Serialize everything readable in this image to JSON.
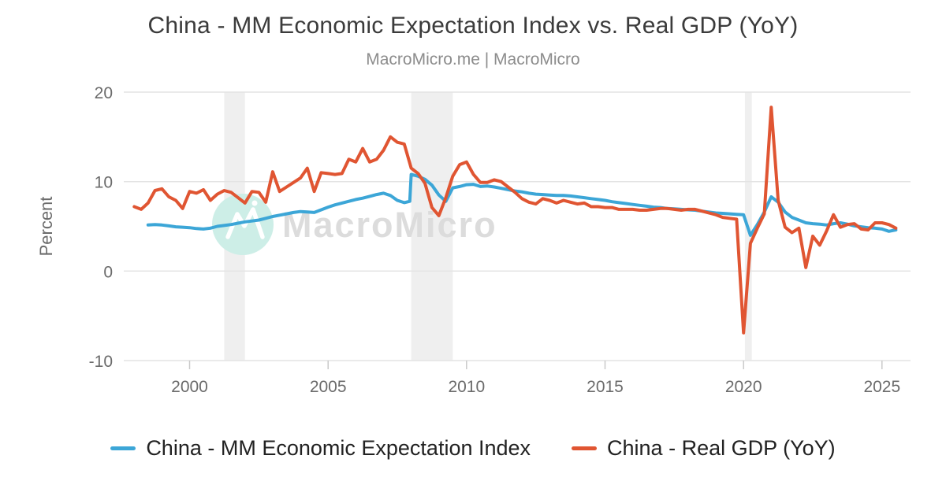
{
  "header": {
    "title": "China - MM Economic Expectation Index vs. Real GDP (YoY)",
    "subtitle": "MacroMicro.me | MacroMicro"
  },
  "colors": {
    "band": "#efefef",
    "grid": "#e4e4e4",
    "axis_tick": "#c9c9c9",
    "tick_text": "#6b6b6b",
    "title_text": "#3b3b3b",
    "subtitle_text": "#8c8c8c",
    "blue_series": "#3ca6d7",
    "red_series": "#e05532"
  },
  "chart_data": {
    "type": "line",
    "title": "China - MM Economic Expectation Index vs. Real GDP (YoY)",
    "subtitle": "MacroMicro.me | MacroMicro",
    "xlabel": "",
    "ylabel": "Percent",
    "ylim": [
      -10,
      20
    ],
    "yticks": [
      20,
      10,
      0,
      -10
    ],
    "xlim": [
      1997.85,
      2026.03
    ],
    "xticks": [
      2000,
      2005,
      2010,
      2015,
      2020,
      2025
    ],
    "grid": true,
    "legend_position": "bottom",
    "recession_bands": [
      [
        2001.25,
        2002.0
      ],
      [
        2008.0,
        2009.5
      ],
      [
        2020.05,
        2020.3
      ]
    ],
    "watermark": {
      "text": "MacroMicro",
      "logo_bg": "#cdeee7",
      "logo_glyph": "#ffffff",
      "text_color": "#dcdcdc"
    },
    "series": [
      {
        "id": "mm-economic-expectation-index",
        "name": "China - MM Economic Expectation Index",
        "color": "#3ca6d7",
        "x": [
          1998.5,
          1998.75,
          1999.0,
          1999.25,
          1999.5,
          1999.75,
          2000.0,
          2000.25,
          2000.5,
          2000.75,
          2001.0,
          2001.25,
          2001.5,
          2001.75,
          2002.0,
          2002.25,
          2002.5,
          2002.75,
          2003.0,
          2003.25,
          2003.5,
          2003.75,
          2004.0,
          2004.25,
          2004.5,
          2004.75,
          2005.0,
          2005.25,
          2005.5,
          2005.75,
          2006.0,
          2006.25,
          2006.5,
          2006.75,
          2007.0,
          2007.25,
          2007.5,
          2007.75,
          2007.95,
          2008.0,
          2008.25,
          2008.5,
          2008.75,
          2009.0,
          2009.25,
          2009.5,
          2009.75,
          2010.0,
          2010.25,
          2010.5,
          2010.75,
          2011.0,
          2011.25,
          2011.5,
          2011.75,
          2012.0,
          2012.25,
          2012.5,
          2012.75,
          2013.0,
          2013.25,
          2013.5,
          2013.75,
          2014.0,
          2014.25,
          2014.5,
          2014.75,
          2015.0,
          2015.25,
          2015.5,
          2015.75,
          2016.0,
          2016.25,
          2016.5,
          2016.75,
          2017.0,
          2017.25,
          2017.5,
          2017.75,
          2018.0,
          2018.25,
          2018.5,
          2018.75,
          2019.0,
          2019.25,
          2019.5,
          2019.75,
          2020.0,
          2020.25,
          2020.5,
          2020.75,
          2021.0,
          2021.25,
          2021.5,
          2021.75,
          2022.0,
          2022.25,
          2022.5,
          2022.75,
          2023.0,
          2023.25,
          2023.5,
          2023.75,
          2024.0,
          2024.25,
          2024.5,
          2024.75,
          2025.0,
          2025.25,
          2025.5
        ],
        "values": [
          5.15,
          5.2,
          5.15,
          5.05,
          4.95,
          4.9,
          4.85,
          4.75,
          4.7,
          4.8,
          5.0,
          5.1,
          5.2,
          5.35,
          5.5,
          5.6,
          5.7,
          5.9,
          6.1,
          6.25,
          6.4,
          6.55,
          6.65,
          6.6,
          6.55,
          6.85,
          7.15,
          7.4,
          7.6,
          7.8,
          8.0,
          8.15,
          8.35,
          8.55,
          8.7,
          8.45,
          7.9,
          7.65,
          7.8,
          10.8,
          10.6,
          10.25,
          9.6,
          8.5,
          7.8,
          9.3,
          9.45,
          9.65,
          9.7,
          9.45,
          9.5,
          9.4,
          9.25,
          9.1,
          8.95,
          8.85,
          8.7,
          8.6,
          8.55,
          8.5,
          8.45,
          8.45,
          8.4,
          8.3,
          8.2,
          8.1,
          8.0,
          7.9,
          7.75,
          7.65,
          7.55,
          7.45,
          7.35,
          7.25,
          7.15,
          7.1,
          7.0,
          6.95,
          6.9,
          6.85,
          6.8,
          6.7,
          6.6,
          6.5,
          6.45,
          6.4,
          6.35,
          6.3,
          4.0,
          5.2,
          6.6,
          8.3,
          7.7,
          6.6,
          6.0,
          5.7,
          5.4,
          5.3,
          5.25,
          5.15,
          5.3,
          5.4,
          5.25,
          5.05,
          4.95,
          4.85,
          4.8,
          4.7,
          4.45,
          4.6
        ]
      },
      {
        "id": "real-gdp-yoy",
        "name": "China - Real GDP (YoY)",
        "color": "#e05532",
        "x": [
          1998.0,
          1998.25,
          1998.5,
          1998.75,
          1999.0,
          1999.25,
          1999.5,
          1999.75,
          2000.0,
          2000.25,
          2000.5,
          2000.75,
          2001.0,
          2001.25,
          2001.5,
          2001.75,
          2002.0,
          2002.25,
          2002.5,
          2002.75,
          2003.0,
          2003.25,
          2003.5,
          2003.75,
          2004.0,
          2004.25,
          2004.5,
          2004.75,
          2005.0,
          2005.25,
          2005.5,
          2005.75,
          2006.0,
          2006.25,
          2006.5,
          2006.75,
          2007.0,
          2007.25,
          2007.5,
          2007.75,
          2008.0,
          2008.25,
          2008.5,
          2008.75,
          2009.0,
          2009.25,
          2009.5,
          2009.75,
          2010.0,
          2010.25,
          2010.5,
          2010.75,
          2011.0,
          2011.25,
          2011.5,
          2011.75,
          2012.0,
          2012.25,
          2012.5,
          2012.75,
          2013.0,
          2013.25,
          2013.5,
          2013.75,
          2014.0,
          2014.25,
          2014.5,
          2014.75,
          2015.0,
          2015.25,
          2015.5,
          2015.75,
          2016.0,
          2016.25,
          2016.5,
          2016.75,
          2017.0,
          2017.25,
          2017.5,
          2017.75,
          2018.0,
          2018.25,
          2018.5,
          2018.75,
          2019.0,
          2019.25,
          2019.5,
          2019.75,
          2020.0,
          2020.25,
          2020.5,
          2020.75,
          2021.0,
          2021.25,
          2021.5,
          2021.75,
          2022.0,
          2022.25,
          2022.5,
          2022.75,
          2023.0,
          2023.25,
          2023.5,
          2023.75,
          2024.0,
          2024.25,
          2024.5,
          2024.75,
          2025.0,
          2025.25,
          2025.5
        ],
        "values": [
          7.2,
          6.9,
          7.6,
          9.0,
          9.2,
          8.3,
          7.9,
          7.0,
          8.9,
          8.7,
          9.1,
          7.9,
          8.6,
          9.0,
          8.8,
          8.2,
          7.6,
          8.9,
          8.8,
          7.7,
          11.1,
          8.9,
          9.4,
          9.9,
          10.4,
          11.5,
          8.9,
          11.0,
          10.9,
          10.8,
          10.9,
          12.5,
          12.2,
          13.7,
          12.2,
          12.5,
          13.5,
          15.0,
          14.4,
          14.2,
          11.5,
          10.9,
          9.8,
          7.1,
          6.2,
          8.2,
          10.6,
          11.9,
          12.2,
          10.8,
          9.9,
          9.9,
          10.2,
          10.0,
          9.4,
          8.8,
          8.1,
          7.7,
          7.5,
          8.1,
          7.9,
          7.6,
          7.9,
          7.7,
          7.5,
          7.6,
          7.2,
          7.2,
          7.1,
          7.1,
          6.9,
          6.9,
          6.9,
          6.8,
          6.8,
          6.9,
          7.0,
          7.0,
          6.9,
          6.8,
          6.9,
          6.9,
          6.7,
          6.5,
          6.3,
          6.0,
          5.9,
          5.8,
          -6.9,
          3.1,
          4.8,
          6.4,
          18.3,
          7.9,
          4.9,
          4.3,
          4.8,
          0.4,
          3.9,
          2.9,
          4.5,
          6.3,
          4.9,
          5.2,
          5.3,
          4.7,
          4.6,
          5.4,
          5.4,
          5.2,
          4.8
        ]
      }
    ]
  },
  "legend": {
    "items": [
      {
        "label": "China - MM Economic Expectation Index",
        "color": "#3ca6d7"
      },
      {
        "label": "China - Real GDP (YoY)",
        "color": "#e05532"
      }
    ]
  }
}
